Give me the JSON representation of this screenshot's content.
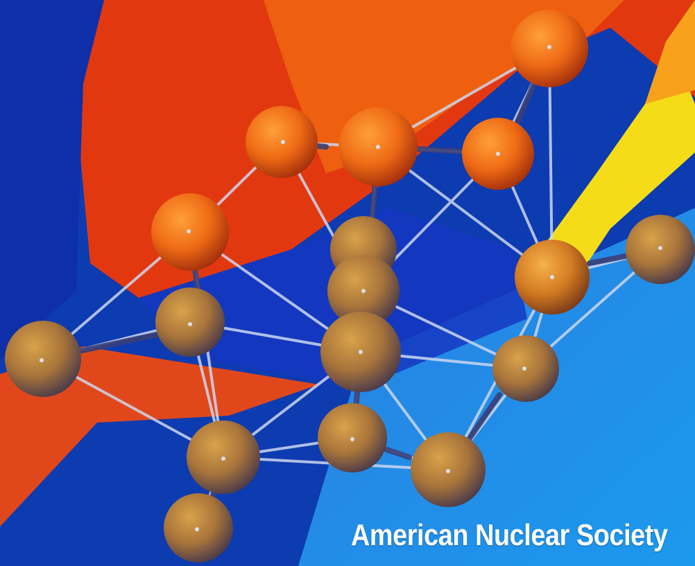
{
  "caption": {
    "text": "American Nuclear Society"
  },
  "artwork": {
    "subject": "molecular cluster of spheres connected by rods over abstract background",
    "icon": "molecule-model",
    "colors": {
      "deep_blue": "#0a34b0",
      "sky_blue": "#1f8fe6",
      "red_orange": "#e4320e",
      "orange": "#f07a10",
      "yellow": "#f6e81a",
      "sphere": "#d68a2a",
      "rod": "#c9d4ee"
    }
  }
}
